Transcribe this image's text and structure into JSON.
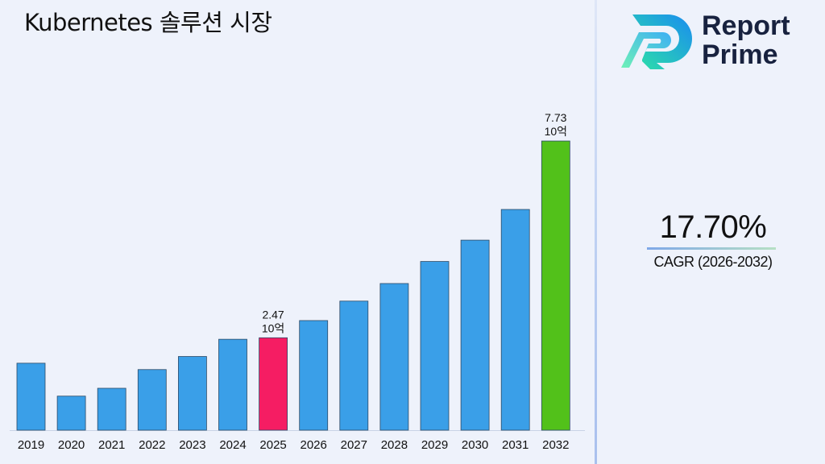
{
  "title": "Kubernetes 솔루션 시장",
  "logo": {
    "line1": "Report",
    "line2": "Prime"
  },
  "cagr": {
    "value": "17.70%",
    "label": "CAGR (2026-2032)"
  },
  "colors": {
    "bar": "#3a9fe8",
    "highlight_current": "#f51d63",
    "highlight_final": "#52c11a"
  },
  "chart_data": {
    "type": "bar",
    "categories": [
      "2019",
      "2020",
      "2021",
      "2022",
      "2023",
      "2024",
      "2025",
      "2026",
      "2027",
      "2028",
      "2029",
      "2030",
      "2031",
      "2032"
    ],
    "values": [
      1.79,
      0.91,
      1.12,
      1.62,
      1.97,
      2.43,
      2.47,
      2.93,
      3.45,
      3.92,
      4.51,
      5.08,
      5.9,
      7.73
    ],
    "unit": "10억",
    "data_labels": [
      {
        "index": 6,
        "value": "2.47",
        "unit": "10억"
      },
      {
        "index": 13,
        "value": "7.73",
        "unit": "10억"
      }
    ],
    "highlight": {
      "6": "#f51d63",
      "13": "#52c11a"
    },
    "ylim": [
      0,
      8.7
    ],
    "grid": false,
    "xlabel": "",
    "ylabel": ""
  }
}
